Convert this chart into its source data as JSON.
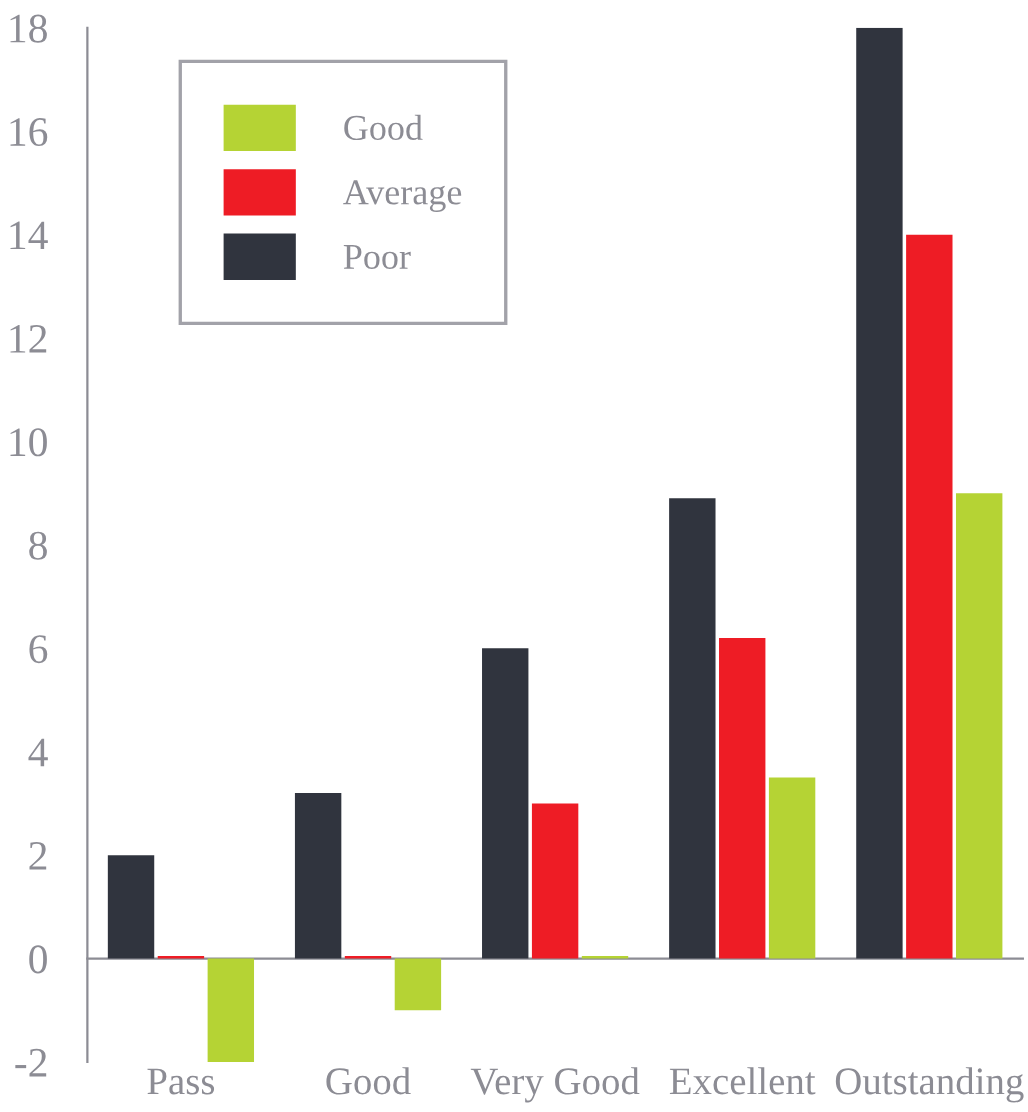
{
  "chart_data": {
    "type": "bar",
    "categories": [
      "Pass",
      "Good",
      "Very Good",
      "Excellent",
      "Outstanding"
    ],
    "series": [
      {
        "name": "Poor",
        "color": "#30343e",
        "values": [
          2,
          3.2,
          6,
          8.9,
          18
        ]
      },
      {
        "name": "Average",
        "color": "#ee1c25",
        "values": [
          0.05,
          0.05,
          3,
          6.2,
          14
        ]
      },
      {
        "name": "Good",
        "color": "#b5d334",
        "values": [
          -2,
          -1,
          0.05,
          3.5,
          9
        ]
      }
    ],
    "ylim": [
      -2,
      18
    ],
    "yticks": [
      -2,
      0,
      2,
      4,
      6,
      8,
      10,
      12,
      14,
      16,
      18
    ],
    "legend": "top left"
  }
}
